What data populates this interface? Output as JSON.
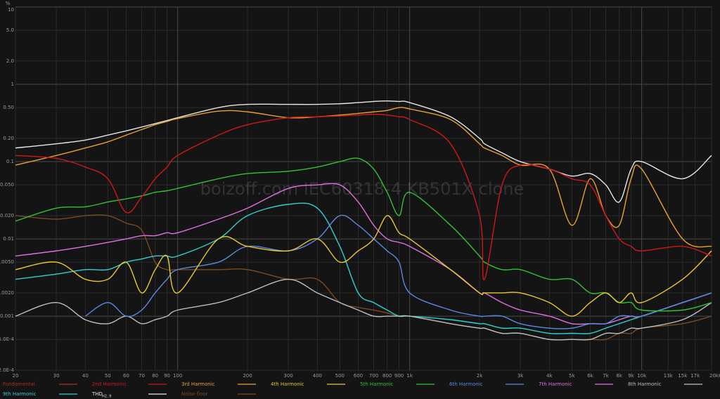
{
  "chart_data": {
    "type": "line",
    "y_label": "%",
    "watermark": "boizoff.com IEC60318-4 KB501X clone",
    "log_x": true,
    "log_y": true,
    "grid": true,
    "xlim": [
      20,
      20000
    ],
    "ylim": [
      0.0002,
      10
    ],
    "xticks": [
      20,
      30,
      40,
      50,
      60,
      70,
      80,
      90,
      100,
      200,
      300,
      400,
      500,
      600,
      700,
      800,
      900,
      {
        "value": 1000,
        "label": "1k"
      },
      {
        "value": 2000,
        "label": "2k"
      },
      {
        "value": 3000,
        "label": "3k"
      },
      {
        "value": 4000,
        "label": "4k"
      },
      {
        "value": 5000,
        "label": "5k"
      },
      {
        "value": 6000,
        "label": "6k"
      },
      {
        "value": 7000,
        "label": "7k"
      },
      {
        "value": 8000,
        "label": "8k"
      },
      {
        "value": 9000,
        "label": "9k"
      },
      {
        "value": 10000,
        "label": "10k"
      },
      {
        "value": 13000,
        "label": "13k"
      },
      {
        "value": 15000,
        "label": "15k"
      },
      {
        "value": 17000,
        "label": "17k"
      },
      {
        "value": 20000,
        "label": "20kHz"
      }
    ],
    "yticks": [
      10,
      {
        "value": 5,
        "label": "5.0"
      },
      {
        "value": 2,
        "label": "2.0"
      },
      1,
      {
        "value": 0.5,
        "label": "0.50"
      },
      {
        "value": 0.2,
        "label": "0.20"
      },
      0.1,
      {
        "value": 0.05,
        "label": "0.050"
      },
      {
        "value": 0.02,
        "label": "0.020"
      },
      0.01,
      {
        "value": 0.005,
        "label": "0.0050"
      },
      {
        "value": 0.002,
        "label": "0.0020"
      },
      0.001,
      {
        "value": 0.0005,
        "label": "5.0E-4"
      },
      {
        "value": 0.0002,
        "label": "2.0E-4"
      }
    ],
    "x": [
      20,
      30,
      40,
      50,
      60,
      70,
      80,
      90,
      100,
      150,
      200,
      300,
      400,
      500,
      600,
      700,
      800,
      900,
      1000,
      1500,
      2000,
      2100,
      2500,
      3000,
      4000,
      5000,
      6000,
      7000,
      8000,
      9000,
      10000,
      15000,
      20000
    ],
    "series": [
      {
        "name": "Fundamental",
        "color": "#a8321e",
        "values": [
          null,
          null,
          null,
          null,
          null,
          null,
          null,
          null,
          null,
          null,
          null,
          null,
          null,
          null,
          null,
          null,
          null,
          null,
          null,
          null,
          null,
          null,
          null,
          null,
          null,
          null,
          null,
          null,
          null,
          null,
          null,
          null,
          null
        ]
      },
      {
        "name": "2nd Harmonic",
        "color": "#d01818",
        "values": [
          0.12,
          0.11,
          0.085,
          0.06,
          0.022,
          0.035,
          0.06,
          0.085,
          0.12,
          0.22,
          0.3,
          0.37,
          0.38,
          0.39,
          0.4,
          0.41,
          0.4,
          0.38,
          0.35,
          0.17,
          0.02,
          0.003,
          0.05,
          0.09,
          0.08,
          0.06,
          0.05,
          0.02,
          0.01,
          0.008,
          0.007,
          0.008,
          0.006
        ]
      },
      {
        "name": "3rd Harmonic",
        "color": "#e8a030",
        "values": [
          0.09,
          0.12,
          0.15,
          0.18,
          0.22,
          0.26,
          0.3,
          0.33,
          0.36,
          0.45,
          0.44,
          0.37,
          0.38,
          0.4,
          0.42,
          0.44,
          0.46,
          0.5,
          0.48,
          0.35,
          0.17,
          0.15,
          0.12,
          0.09,
          0.08,
          0.015,
          0.06,
          0.02,
          0.015,
          0.06,
          0.08,
          0.01,
          0.008
        ]
      },
      {
        "name": "4th Harmonic",
        "color": "#e8c830",
        "values": [
          0.004,
          0.005,
          0.003,
          0.003,
          0.005,
          0.002,
          0.004,
          0.006,
          0.002,
          0.01,
          0.008,
          0.007,
          0.01,
          0.005,
          0.007,
          0.01,
          0.02,
          0.012,
          0.01,
          0.004,
          0.002,
          0.002,
          0.002,
          0.002,
          0.0015,
          0.001,
          0.0015,
          0.002,
          0.0015,
          0.002,
          0.0015,
          0.003,
          0.007
        ]
      },
      {
        "name": "5th Harmonic",
        "color": "#34c034",
        "values": [
          0.017,
          0.025,
          0.026,
          0.03,
          0.033,
          0.036,
          0.04,
          0.042,
          0.045,
          0.06,
          0.07,
          0.075,
          0.085,
          0.1,
          0.11,
          0.08,
          0.04,
          0.02,
          0.04,
          0.015,
          0.006,
          0.005,
          0.004,
          0.004,
          0.003,
          0.003,
          0.002,
          0.002,
          0.0015,
          0.0015,
          0.0012,
          0.0012,
          0.0015
        ]
      },
      {
        "name": "6th Harmonic",
        "color": "#5a8ae0",
        "values": [
          null,
          null,
          0.001,
          0.0015,
          0.001,
          0.0012,
          0.002,
          0.003,
          0.004,
          0.005,
          0.008,
          0.007,
          0.01,
          0.02,
          0.015,
          0.01,
          0.007,
          0.005,
          0.002,
          0.0012,
          0.001,
          0.001,
          0.001,
          0.0008,
          0.0007,
          0.0007,
          0.0008,
          0.0008,
          0.001,
          0.001,
          0.001,
          0.0015,
          0.002
        ]
      },
      {
        "name": "7th Harmonic",
        "color": "#e070e0",
        "values": [
          0.006,
          0.007,
          0.008,
          0.009,
          0.01,
          0.011,
          0.011,
          0.012,
          0.012,
          0.018,
          0.025,
          0.045,
          0.05,
          0.05,
          0.03,
          0.015,
          0.01,
          0.009,
          0.008,
          0.004,
          0.002,
          0.002,
          0.0015,
          0.0012,
          0.001,
          0.0008,
          0.0008,
          0.0008,
          0.0009,
          0.001,
          0.001,
          0.0015,
          0.002
        ]
      },
      {
        "name": "8th Harmonic",
        "color": "#bdbdbd",
        "values": [
          0.001,
          0.0015,
          0.0009,
          0.0008,
          0.001,
          0.0008,
          0.0009,
          0.001,
          0.0012,
          0.0015,
          0.002,
          0.003,
          0.002,
          0.0015,
          0.0012,
          0.001,
          0.001,
          0.001,
          0.001,
          0.0008,
          0.0007,
          0.0007,
          0.0006,
          0.0006,
          0.0005,
          0.0005,
          0.0005,
          0.0006,
          0.0006,
          0.0007,
          0.0007,
          0.0009,
          0.0015
        ]
      },
      {
        "name": "9th Harmonic",
        "color": "#30d0d0",
        "values": [
          0.003,
          0.0035,
          0.004,
          0.004,
          0.005,
          0.0055,
          0.006,
          0.006,
          0.006,
          0.01,
          0.02,
          0.028,
          0.025,
          0.008,
          0.002,
          0.0015,
          0.0012,
          0.001,
          0.001,
          0.0009,
          0.0008,
          0.0008,
          0.0007,
          0.0007,
          0.0006,
          0.0006,
          0.0006,
          0.0007,
          0.0008,
          0.0009,
          0.001,
          0.0015,
          0.002
        ]
      },
      {
        "name": "THD",
        "subscript": "H2..9",
        "color": "#e6e6e6",
        "values": [
          0.15,
          0.17,
          0.19,
          0.22,
          0.25,
          0.28,
          0.31,
          0.34,
          0.37,
          0.5,
          0.55,
          0.55,
          0.55,
          0.56,
          0.58,
          0.6,
          0.61,
          0.6,
          0.58,
          0.38,
          0.2,
          0.17,
          0.13,
          0.1,
          0.08,
          0.065,
          0.07,
          0.05,
          0.03,
          0.08,
          0.1,
          0.06,
          0.12
        ]
      },
      {
        "name": "Noise floor",
        "color": "#7a4a20",
        "values": [
          0.02,
          0.018,
          0.02,
          0.02,
          0.016,
          0.013,
          0.005,
          0.004,
          0.004,
          0.004,
          0.004,
          0.003,
          0.003,
          0.0015,
          0.0013,
          0.0012,
          0.0011,
          0.001,
          0.001,
          0.0008,
          0.0007,
          0.0007,
          0.0006,
          0.0006,
          0.0005,
          0.0005,
          0.0005,
          0.0005,
          0.0006,
          0.0006,
          0.0007,
          0.0008,
          0.001
        ]
      }
    ]
  }
}
